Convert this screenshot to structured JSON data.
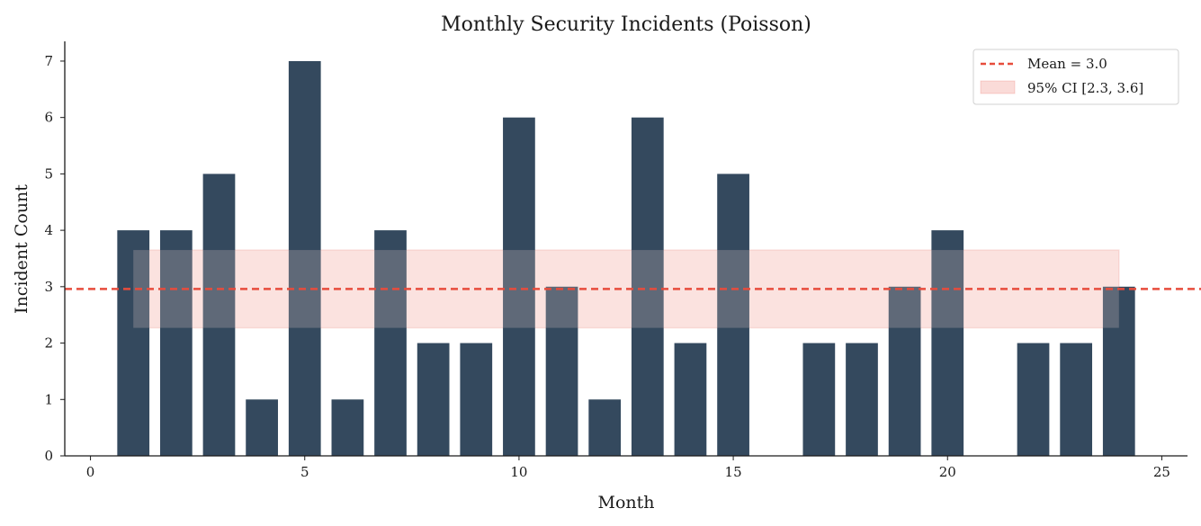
{
  "chart_data": {
    "type": "bar",
    "title": "Monthly Security Incidents (Poisson)",
    "xlabel": "Month",
    "ylabel": "Incident Count",
    "x": [
      1,
      2,
      3,
      4,
      5,
      6,
      7,
      8,
      9,
      10,
      11,
      12,
      13,
      14,
      15,
      16,
      17,
      18,
      19,
      20,
      21,
      22,
      23,
      24
    ],
    "values": [
      4,
      4,
      5,
      1,
      7,
      1,
      4,
      2,
      2,
      6,
      3,
      1,
      6,
      2,
      5,
      0,
      2,
      2,
      3,
      4,
      0,
      2,
      2,
      3
    ],
    "xlim": [
      -0.6,
      25.6
    ],
    "ylim": [
      0,
      7.35
    ],
    "xticks": [
      0,
      5,
      10,
      15,
      20,
      25
    ],
    "yticks": [
      0,
      1,
      2,
      3,
      4,
      5,
      6,
      7
    ],
    "bar_color": "#34495e",
    "mean": 2.96,
    "mean_color": "#e74c3c",
    "ci": [
      2.27,
      3.65
    ],
    "ci_x_range": [
      1,
      24
    ],
    "ci_color": "#fadbd8",
    "ci_edge_color": "#e74c3c",
    "grid": false,
    "legend_position": "top-right",
    "legend": [
      {
        "label": "Mean = 3.0",
        "kind": "dashed-line"
      },
      {
        "label": "95% CI [2.3, 3.6]",
        "kind": "patch"
      }
    ]
  }
}
